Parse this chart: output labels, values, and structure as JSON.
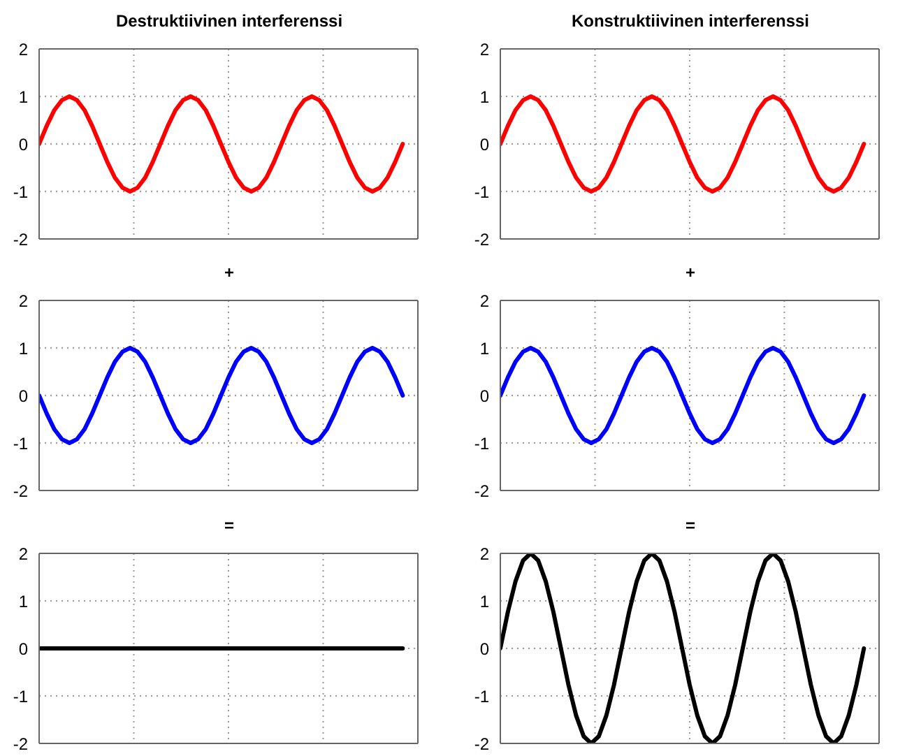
{
  "chart_data": [
    {
      "type": "line",
      "title": "Destruktiivinen interferenssi",
      "categories": [
        null,
        null,
        null,
        null,
        null,
        null,
        null,
        null,
        null,
        null,
        null,
        null,
        null,
        null,
        null,
        null,
        null,
        null,
        null,
        null,
        null,
        null,
        null,
        null,
        null,
        null,
        null,
        null,
        null,
        null,
        null,
        null,
        null,
        null,
        null,
        null,
        null,
        null,
        null,
        null,
        null,
        null,
        null,
        null,
        null,
        null,
        null,
        null,
        null,
        null,
        null
      ],
      "ylim": [
        -2,
        2
      ],
      "yticks": [
        -2,
        -1,
        0,
        1,
        2
      ],
      "tick_labels": "y",
      "grid": true,
      "marker": "none",
      "line_style": "solid",
      "series": [
        {
          "color": "#ff0000",
          "values": [
            0,
            0.38,
            0.71,
            0.92,
            1,
            0.92,
            0.71,
            0.38,
            0,
            -0.38,
            -0.71,
            -0.92,
            -1,
            -0.92,
            -0.71,
            -0.38,
            0,
            0.38,
            0.71,
            0.92,
            1,
            0.92,
            0.71,
            0.38,
            0,
            -0.38,
            -0.71,
            -0.92,
            -1,
            -0.92,
            -0.71,
            -0.38,
            0,
            0.38,
            0.71,
            0.92,
            1,
            0.92,
            0.71,
            0.38,
            0,
            -0.38,
            -0.71,
            -0.92,
            -1,
            -0.92,
            -0.71,
            -0.38,
            0,
            null,
            null
          ]
        }
      ]
    },
    {
      "type": "line",
      "title": "Konstruktiivinen interferenssi",
      "categories": [
        null,
        null,
        null,
        null,
        null,
        null,
        null,
        null,
        null,
        null,
        null,
        null,
        null,
        null,
        null,
        null,
        null,
        null,
        null,
        null,
        null,
        null,
        null,
        null,
        null,
        null,
        null,
        null,
        null,
        null,
        null,
        null,
        null,
        null,
        null,
        null,
        null,
        null,
        null,
        null,
        null,
        null,
        null,
        null,
        null,
        null,
        null,
        null,
        null,
        null,
        null
      ],
      "ylim": [
        -2,
        2
      ],
      "yticks": [
        -2,
        -1,
        0,
        1,
        2
      ],
      "tick_labels": "y",
      "grid": true,
      "marker": "none",
      "line_style": "solid",
      "series": [
        {
          "color": "#ff0000",
          "values": [
            0,
            0.38,
            0.71,
            0.92,
            1,
            0.92,
            0.71,
            0.38,
            0,
            -0.38,
            -0.71,
            -0.92,
            -1,
            -0.92,
            -0.71,
            -0.38,
            0,
            0.38,
            0.71,
            0.92,
            1,
            0.92,
            0.71,
            0.38,
            0,
            -0.38,
            -0.71,
            -0.92,
            -1,
            -0.92,
            -0.71,
            -0.38,
            0,
            0.38,
            0.71,
            0.92,
            1,
            0.92,
            0.71,
            0.38,
            0,
            -0.38,
            -0.71,
            -0.92,
            -1,
            -0.92,
            -0.71,
            -0.38,
            0,
            null,
            null
          ]
        }
      ]
    },
    {
      "type": "line",
      "title": "+",
      "categories": [
        null,
        null,
        null,
        null,
        null,
        null,
        null,
        null,
        null,
        null,
        null,
        null,
        null,
        null,
        null,
        null,
        null,
        null,
        null,
        null,
        null,
        null,
        null,
        null,
        null,
        null,
        null,
        null,
        null,
        null,
        null,
        null,
        null,
        null,
        null,
        null,
        null,
        null,
        null,
        null,
        null,
        null,
        null,
        null,
        null,
        null,
        null,
        null,
        null,
        null,
        null
      ],
      "ylim": [
        -2,
        2
      ],
      "yticks": [
        -2,
        -1,
        0,
        1,
        2
      ],
      "tick_labels": "y",
      "grid": true,
      "marker": "none",
      "line_style": "solid",
      "series": [
        {
          "color": "#0000ff",
          "values": [
            0,
            -0.38,
            -0.71,
            -0.92,
            -1,
            -0.92,
            -0.71,
            -0.38,
            0,
            0.38,
            0.71,
            0.92,
            1,
            0.92,
            0.71,
            0.38,
            0,
            -0.38,
            -0.71,
            -0.92,
            -1,
            -0.92,
            -0.71,
            -0.38,
            0,
            0.38,
            0.71,
            0.92,
            1,
            0.92,
            0.71,
            0.38,
            0,
            -0.38,
            -0.71,
            -0.92,
            -1,
            -0.92,
            -0.71,
            -0.38,
            0,
            0.38,
            0.71,
            0.92,
            1,
            0.92,
            0.71,
            0.38,
            0,
            null,
            null
          ]
        }
      ]
    },
    {
      "type": "line",
      "title": "+",
      "categories": [
        null,
        null,
        null,
        null,
        null,
        null,
        null,
        null,
        null,
        null,
        null,
        null,
        null,
        null,
        null,
        null,
        null,
        null,
        null,
        null,
        null,
        null,
        null,
        null,
        null,
        null,
        null,
        null,
        null,
        null,
        null,
        null,
        null,
        null,
        null,
        null,
        null,
        null,
        null,
        null,
        null,
        null,
        null,
        null,
        null,
        null,
        null,
        null,
        null,
        null,
        null
      ],
      "ylim": [
        -2,
        2
      ],
      "yticks": [
        -2,
        -1,
        0,
        1,
        2
      ],
      "tick_labels": "y",
      "grid": true,
      "marker": "none",
      "line_style": "solid",
      "series": [
        {
          "color": "#0000ff",
          "values": [
            0,
            0.38,
            0.71,
            0.92,
            1,
            0.92,
            0.71,
            0.38,
            0,
            -0.38,
            -0.71,
            -0.92,
            -1,
            -0.92,
            -0.71,
            -0.38,
            0,
            0.38,
            0.71,
            0.92,
            1,
            0.92,
            0.71,
            0.38,
            0,
            -0.38,
            -0.71,
            -0.92,
            -1,
            -0.92,
            -0.71,
            -0.38,
            0,
            0.38,
            0.71,
            0.92,
            1,
            0.92,
            0.71,
            0.38,
            0,
            -0.38,
            -0.71,
            -0.92,
            -1,
            -0.92,
            -0.71,
            -0.38,
            0,
            null,
            null
          ]
        }
      ]
    },
    {
      "type": "line",
      "title": "=",
      "categories": [
        null,
        null,
        null,
        null,
        null,
        null,
        null,
        null,
        null,
        null,
        null,
        null,
        null,
        null,
        null,
        null,
        null,
        null,
        null,
        null,
        null,
        null,
        null,
        null,
        null,
        null,
        null,
        null,
        null,
        null,
        null,
        null,
        null,
        null,
        null,
        null,
        null,
        null,
        null,
        null,
        null,
        null,
        null,
        null,
        null,
        null,
        null,
        null,
        null,
        null,
        null
      ],
      "ylim": [
        -2,
        2
      ],
      "yticks": [
        -2,
        -1,
        0,
        1,
        2
      ],
      "tick_labels": "y",
      "grid": true,
      "marker": "none",
      "line_style": "solid",
      "series": [
        {
          "color": "#000000",
          "values": [
            0,
            0,
            0,
            0,
            0,
            0,
            0,
            0,
            0,
            0,
            0,
            0,
            0,
            0,
            0,
            0,
            0,
            0,
            0,
            0,
            0,
            0,
            0,
            0,
            0,
            0,
            0,
            0,
            0,
            0,
            0,
            0,
            0,
            0,
            0,
            0,
            0,
            0,
            0,
            0,
            0,
            0,
            0,
            0,
            0,
            0,
            0,
            0,
            0,
            null,
            null
          ]
        }
      ]
    },
    {
      "type": "line",
      "title": "=",
      "categories": [
        null,
        null,
        null,
        null,
        null,
        null,
        null,
        null,
        null,
        null,
        null,
        null,
        null,
        null,
        null,
        null,
        null,
        null,
        null,
        null,
        null,
        null,
        null,
        null,
        null,
        null,
        null,
        null,
        null,
        null,
        null,
        null,
        null,
        null,
        null,
        null,
        null,
        null,
        null,
        null,
        null,
        null,
        null,
        null,
        null,
        null,
        null,
        null,
        null,
        null,
        null
      ],
      "ylim": [
        -2,
        2
      ],
      "yticks": [
        -2,
        -1,
        0,
        1,
        2
      ],
      "tick_labels": "y",
      "grid": true,
      "marker": "none",
      "line_style": "solid",
      "series": [
        {
          "color": "#000000",
          "values": [
            0,
            0.77,
            1.41,
            1.85,
            2,
            1.85,
            1.41,
            0.77,
            0,
            -0.77,
            -1.41,
            -1.85,
            -2,
            -1.85,
            -1.41,
            -0.77,
            0,
            0.77,
            1.41,
            1.85,
            2,
            1.85,
            1.41,
            0.77,
            0,
            -0.77,
            -1.41,
            -1.85,
            -2,
            -1.85,
            -1.41,
            -0.77,
            0,
            0.77,
            1.41,
            1.85,
            2,
            1.85,
            1.41,
            0.77,
            0,
            -0.77,
            -1.41,
            -1.85,
            -2,
            -1.85,
            -1.41,
            -0.77,
            0,
            null,
            null
          ]
        }
      ]
    }
  ]
}
